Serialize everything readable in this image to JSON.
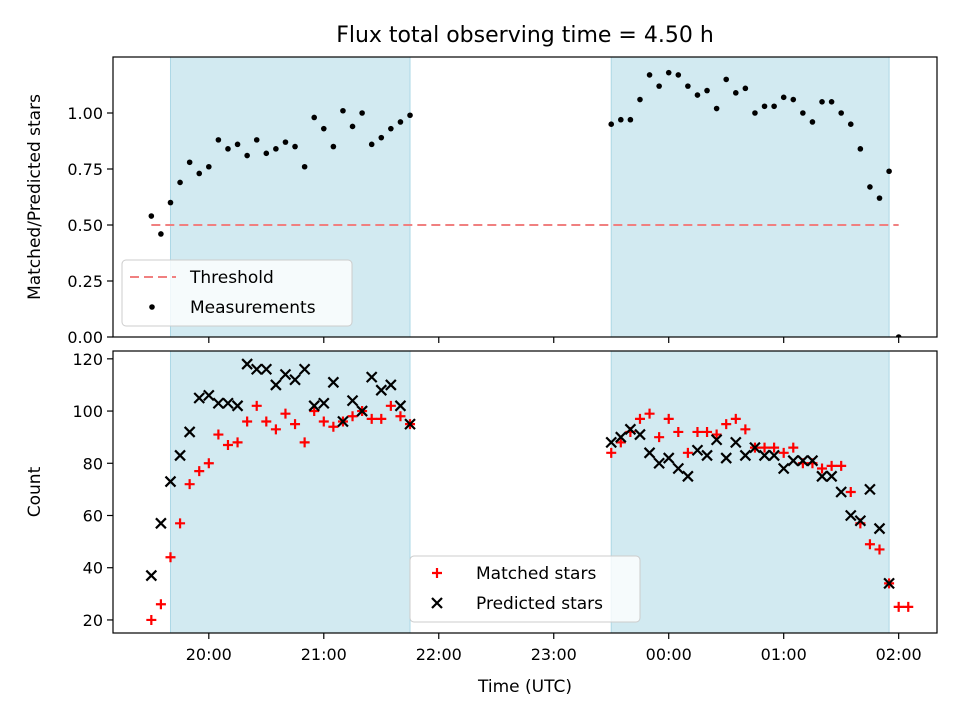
{
  "figure": {
    "title": "Flux total observing time = 4.50 h",
    "xlabel": "Time (UTC)"
  },
  "colors": {
    "shade": "#add8e6",
    "threshold": "#f08080",
    "measurement": "#000000",
    "matched": "#ff0000",
    "predicted": "#000000"
  },
  "chart_data": [
    {
      "type": "scatter",
      "title": "Flux total observing time = 4.50 h",
      "xlabel": "",
      "ylabel": "Matched/Predicted stars",
      "xlim": [
        "19:10",
        "02:20"
      ],
      "ylim": [
        0,
        1.25
      ],
      "yticks": [
        0.0,
        0.25,
        0.5,
        0.75,
        1.0
      ],
      "ytick_labels": [
        "0.00",
        "0.25",
        "0.50",
        "0.75",
        "1.00"
      ],
      "grid": false,
      "legend_placement": "lower-left",
      "shaded_spans": [
        [
          "19:40",
          "21:45"
        ],
        [
          "23:30",
          "01:55"
        ]
      ],
      "threshold": {
        "name": "Threshold",
        "y": 0.5,
        "x": [
          "19:30",
          "02:00"
        ],
        "style": "dashed"
      },
      "series": [
        {
          "name": "Measurements",
          "marker": "dot",
          "points": [
            [
              "19:30",
              0.54
            ],
            [
              "19:35",
              0.46
            ],
            [
              "19:40",
              0.6
            ],
            [
              "19:45",
              0.69
            ],
            [
              "19:50",
              0.78
            ],
            [
              "19:55",
              0.73
            ],
            [
              "20:00",
              0.76
            ],
            [
              "20:05",
              0.88
            ],
            [
              "20:10",
              0.84
            ],
            [
              "20:15",
              0.86
            ],
            [
              "20:20",
              0.81
            ],
            [
              "20:25",
              0.88
            ],
            [
              "20:30",
              0.82
            ],
            [
              "20:35",
              0.84
            ],
            [
              "20:40",
              0.87
            ],
            [
              "20:45",
              0.85
            ],
            [
              "20:50",
              0.76
            ],
            [
              "20:55",
              0.98
            ],
            [
              "21:00",
              0.93
            ],
            [
              "21:05",
              0.85
            ],
            [
              "21:10",
              1.01
            ],
            [
              "21:15",
              0.94
            ],
            [
              "21:20",
              1.0
            ],
            [
              "21:25",
              0.86
            ],
            [
              "21:30",
              0.89
            ],
            [
              "21:35",
              0.93
            ],
            [
              "21:40",
              0.96
            ],
            [
              "21:45",
              0.99
            ],
            [
              "23:30",
              0.95
            ],
            [
              "23:35",
              0.97
            ],
            [
              "23:40",
              0.97
            ],
            [
              "23:45",
              1.06
            ],
            [
              "23:50",
              1.17
            ],
            [
              "23:55",
              1.12
            ],
            [
              "00:00",
              1.18
            ],
            [
              "00:05",
              1.17
            ],
            [
              "00:10",
              1.12
            ],
            [
              "00:15",
              1.08
            ],
            [
              "00:20",
              1.1
            ],
            [
              "00:25",
              1.02
            ],
            [
              "00:30",
              1.15
            ],
            [
              "00:35",
              1.09
            ],
            [
              "00:40",
              1.11
            ],
            [
              "00:45",
              1.0
            ],
            [
              "00:50",
              1.03
            ],
            [
              "00:55",
              1.03
            ],
            [
              "01:00",
              1.07
            ],
            [
              "01:05",
              1.06
            ],
            [
              "01:10",
              1.0
            ],
            [
              "01:15",
              0.96
            ],
            [
              "01:20",
              1.05
            ],
            [
              "01:25",
              1.05
            ],
            [
              "01:30",
              1.0
            ],
            [
              "01:35",
              0.95
            ],
            [
              "01:40",
              0.84
            ],
            [
              "01:45",
              0.67
            ],
            [
              "01:50",
              0.62
            ],
            [
              "01:55",
              0.74
            ],
            [
              "02:00",
              0.0
            ]
          ]
        }
      ]
    },
    {
      "type": "scatter",
      "title": "",
      "xlabel": "Time (UTC)",
      "ylabel": "Count",
      "xlim": [
        "19:10",
        "02:20"
      ],
      "ylim": [
        15,
        123
      ],
      "yticks": [
        20,
        40,
        60,
        80,
        100,
        120
      ],
      "ytick_labels": [
        "20",
        "40",
        "60",
        "80",
        "100",
        "120"
      ],
      "xticks": [
        "20:00",
        "21:00",
        "22:00",
        "23:00",
        "00:00",
        "01:00",
        "02:00"
      ],
      "xtick_labels": [
        "20:00",
        "21:00",
        "22:00",
        "23:00",
        "00:00",
        "01:00",
        "02:00"
      ],
      "grid": false,
      "legend_placement": "lower-center",
      "shaded_spans": [
        [
          "19:40",
          "21:45"
        ],
        [
          "23:30",
          "01:55"
        ]
      ],
      "series": [
        {
          "name": "Matched stars",
          "marker": "plus",
          "points": [
            [
              "19:30",
              20
            ],
            [
              "19:35",
              26
            ],
            [
              "19:40",
              44
            ],
            [
              "19:45",
              57
            ],
            [
              "19:50",
              72
            ],
            [
              "19:55",
              77
            ],
            [
              "20:00",
              80
            ],
            [
              "20:05",
              91
            ],
            [
              "20:10",
              87
            ],
            [
              "20:15",
              88
            ],
            [
              "20:20",
              96
            ],
            [
              "20:25",
              102
            ],
            [
              "20:30",
              96
            ],
            [
              "20:35",
              93
            ],
            [
              "20:40",
              99
            ],
            [
              "20:45",
              95
            ],
            [
              "20:50",
              88
            ],
            [
              "20:55",
              100
            ],
            [
              "21:00",
              96
            ],
            [
              "21:05",
              94
            ],
            [
              "21:10",
              96
            ],
            [
              "21:15",
              98
            ],
            [
              "21:20",
              100
            ],
            [
              "21:25",
              97
            ],
            [
              "21:30",
              97
            ],
            [
              "21:35",
              102
            ],
            [
              "21:40",
              98
            ],
            [
              "21:45",
              95
            ],
            [
              "23:30",
              84
            ],
            [
              "23:35",
              88
            ],
            [
              "23:40",
              92
            ],
            [
              "23:45",
              97
            ],
            [
              "23:50",
              99
            ],
            [
              "23:55",
              90
            ],
            [
              "00:00",
              97
            ],
            [
              "00:05",
              92
            ],
            [
              "00:10",
              84
            ],
            [
              "00:15",
              92
            ],
            [
              "00:20",
              92
            ],
            [
              "00:25",
              91
            ],
            [
              "00:30",
              95
            ],
            [
              "00:35",
              97
            ],
            [
              "00:40",
              93
            ],
            [
              "00:45",
              86
            ],
            [
              "00:50",
              86
            ],
            [
              "00:55",
              86
            ],
            [
              "01:00",
              84
            ],
            [
              "01:05",
              86
            ],
            [
              "01:10",
              80
            ],
            [
              "01:15",
              80
            ],
            [
              "01:20",
              78
            ],
            [
              "01:25",
              79
            ],
            [
              "01:30",
              79
            ],
            [
              "01:35",
              69
            ],
            [
              "01:40",
              57
            ],
            [
              "01:45",
              49
            ],
            [
              "01:50",
              47
            ],
            [
              "01:55",
              34
            ],
            [
              "02:00",
              25
            ],
            [
              "02:05",
              25
            ]
          ]
        },
        {
          "name": "Predicted stars",
          "marker": "x",
          "points": [
            [
              "19:30",
              37
            ],
            [
              "19:35",
              57
            ],
            [
              "19:40",
              73
            ],
            [
              "19:45",
              83
            ],
            [
              "19:50",
              92
            ],
            [
              "19:55",
              105
            ],
            [
              "20:00",
              106
            ],
            [
              "20:05",
              103
            ],
            [
              "20:10",
              103
            ],
            [
              "20:15",
              102
            ],
            [
              "20:20",
              118
            ],
            [
              "20:25",
              116
            ],
            [
              "20:30",
              116
            ],
            [
              "20:35",
              110
            ],
            [
              "20:40",
              114
            ],
            [
              "20:45",
              112
            ],
            [
              "20:50",
              116
            ],
            [
              "20:55",
              102
            ],
            [
              "21:00",
              103
            ],
            [
              "21:05",
              111
            ],
            [
              "21:10",
              96
            ],
            [
              "21:15",
              104
            ],
            [
              "21:20",
              100
            ],
            [
              "21:25",
              113
            ],
            [
              "21:30",
              108
            ],
            [
              "21:35",
              110
            ],
            [
              "21:40",
              102
            ],
            [
              "21:45",
              95
            ],
            [
              "23:30",
              88
            ],
            [
              "23:35",
              90
            ],
            [
              "23:40",
              93
            ],
            [
              "23:45",
              91
            ],
            [
              "23:50",
              84
            ],
            [
              "23:55",
              80
            ],
            [
              "00:00",
              82
            ],
            [
              "00:05",
              78
            ],
            [
              "00:10",
              75
            ],
            [
              "00:15",
              85
            ],
            [
              "00:20",
              83
            ],
            [
              "00:25",
              89
            ],
            [
              "00:30",
              82
            ],
            [
              "00:35",
              88
            ],
            [
              "00:40",
              83
            ],
            [
              "00:45",
              86
            ],
            [
              "00:50",
              83
            ],
            [
              "00:55",
              83
            ],
            [
              "01:00",
              78
            ],
            [
              "01:05",
              81
            ],
            [
              "01:10",
              81
            ],
            [
              "01:15",
              81
            ],
            [
              "01:20",
              75
            ],
            [
              "01:25",
              75
            ],
            [
              "01:30",
              69
            ],
            [
              "01:35",
              60
            ],
            [
              "01:40",
              58
            ],
            [
              "01:45",
              70
            ],
            [
              "01:50",
              55
            ],
            [
              "01:55",
              34
            ]
          ]
        }
      ]
    }
  ]
}
